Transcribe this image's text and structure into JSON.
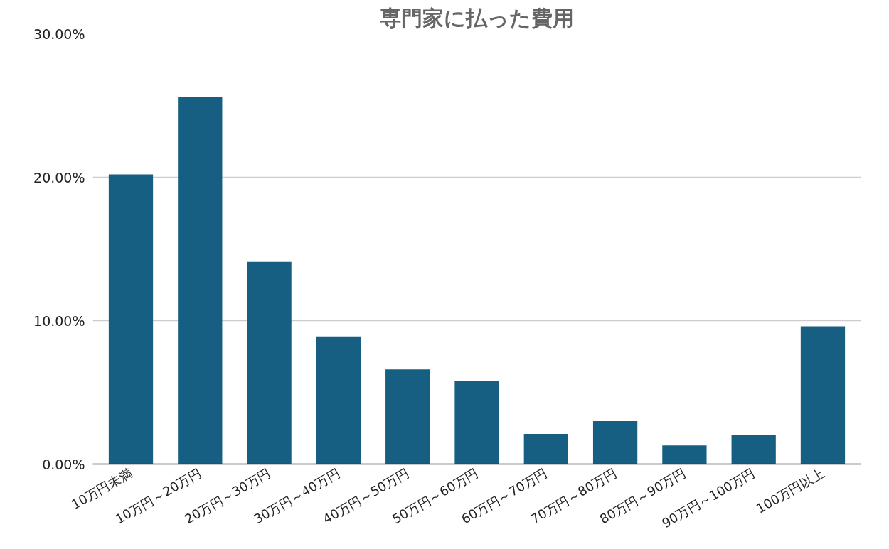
{
  "chart_data": {
    "type": "bar",
    "title": "専門家に払った費用",
    "categories": [
      "10万円未満",
      "10万円～20万円",
      "20万円～30万円",
      "30万円～40万円",
      "40万円～50万円",
      "50万円～60万円",
      "60万円～70万円",
      "70万円～80万円",
      "80万円～90万円",
      "90万円～100万円",
      "100万円以上"
    ],
    "values": [
      20.2,
      25.6,
      14.1,
      8.9,
      6.6,
      5.8,
      2.1,
      3.0,
      1.3,
      2.0,
      9.6
    ],
    "color": "#175f82",
    "ylim": [
      0,
      30
    ],
    "yticks": [
      {
        "value": 0,
        "label": "0.00%"
      },
      {
        "value": 10,
        "label": "10.00%"
      },
      {
        "value": 20,
        "label": "20.00%"
      },
      {
        "value": 30,
        "label": "30.00%"
      }
    ],
    "grid": "y"
  }
}
